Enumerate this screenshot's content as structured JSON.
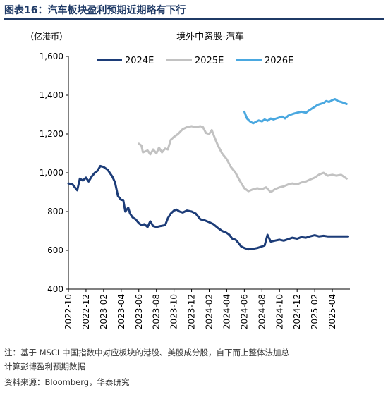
{
  "figure": {
    "label": "图表16：",
    "title": "汽车板块盈利预期近期略有下行",
    "note_line1": "注：基于 MSCI 中国指数中对应板块的港股、美股成分股，自下而上整体法加总",
    "note_line2": "计算彭博盈利预期数据",
    "source": "资料来源：Bloomberg，华泰研究"
  },
  "chart_data": {
    "type": "line",
    "title": "境外中资股-汽车",
    "ylabel": "（亿港币）",
    "ylim": [
      400,
      1600
    ],
    "yticks": [
      400,
      600,
      800,
      1000,
      1200,
      1400,
      1600
    ],
    "xlim": [
      "2022-10",
      "2025-06"
    ],
    "xticks": [
      "2022-10",
      "2022-12",
      "2023-02",
      "2023-04",
      "2023-06",
      "2023-08",
      "2023-10",
      "2023-12",
      "2024-02",
      "2024-04",
      "2024-06",
      "2024-08",
      "2024-10",
      "2024-12",
      "2025-02",
      "2025-04"
    ],
    "grid": false,
    "legend_position": "top",
    "series": [
      {
        "name": "2024E",
        "color": "#1c3c78",
        "points": [
          [
            "2022-10",
            945
          ],
          [
            "2022-10-15",
            940
          ],
          [
            "2022-11",
            910
          ],
          [
            "2022-11-10",
            970
          ],
          [
            "2022-11-20",
            960
          ],
          [
            "2022-12",
            975
          ],
          [
            "2022-12-10",
            955
          ],
          [
            "2022-12-20",
            980
          ],
          [
            "2023-01",
            1000
          ],
          [
            "2023-01-10",
            1010
          ],
          [
            "2023-01-20",
            1035
          ],
          [
            "2023-02",
            1030
          ],
          [
            "2023-02-15",
            1015
          ],
          [
            "2023-03",
            980
          ],
          [
            "2023-03-10",
            950
          ],
          [
            "2023-03-20",
            880
          ],
          [
            "2023-04",
            860
          ],
          [
            "2023-04-08",
            860
          ],
          [
            "2023-04-15",
            800
          ],
          [
            "2023-04-25",
            820
          ],
          [
            "2023-05",
            790
          ],
          [
            "2023-05-10",
            770
          ],
          [
            "2023-05-20",
            760
          ],
          [
            "2023-06",
            740
          ],
          [
            "2023-06-10",
            730
          ],
          [
            "2023-06-20",
            735
          ],
          [
            "2023-07",
            720
          ],
          [
            "2023-07-10",
            750
          ],
          [
            "2023-07-20",
            725
          ],
          [
            "2023-08",
            720
          ],
          [
            "2023-08-15",
            725
          ],
          [
            "2023-09",
            730
          ],
          [
            "2023-09-10",
            765
          ],
          [
            "2023-09-20",
            790
          ],
          [
            "2023-10",
            805
          ],
          [
            "2023-10-10",
            810
          ],
          [
            "2023-10-20",
            800
          ],
          [
            "2023-11",
            795
          ],
          [
            "2023-11-15",
            805
          ],
          [
            "2023-12",
            800
          ],
          [
            "2023-12-15",
            790
          ],
          [
            "2024-01",
            760
          ],
          [
            "2024-01-15",
            755
          ],
          [
            "2024-02",
            745
          ],
          [
            "2024-02-15",
            735
          ],
          [
            "2024-03",
            715
          ],
          [
            "2024-03-15",
            700
          ],
          [
            "2024-04",
            690
          ],
          [
            "2024-04-10",
            680
          ],
          [
            "2024-04-20",
            660
          ],
          [
            "2024-05",
            655
          ],
          [
            "2024-05-10",
            640
          ],
          [
            "2024-05-20",
            620
          ],
          [
            "2024-06",
            612
          ],
          [
            "2024-06-15",
            605
          ],
          [
            "2024-07",
            608
          ],
          [
            "2024-07-15",
            612
          ],
          [
            "2024-08",
            620
          ],
          [
            "2024-08-10",
            625
          ],
          [
            "2024-08-20",
            680
          ],
          [
            "2024-09",
            645
          ],
          [
            "2024-09-15",
            650
          ],
          [
            "2024-10",
            655
          ],
          [
            "2024-10-15",
            650
          ],
          [
            "2024-11",
            658
          ],
          [
            "2024-11-15",
            665
          ],
          [
            "2024-12",
            660
          ],
          [
            "2024-12-15",
            668
          ],
          [
            "2025-01",
            665
          ],
          [
            "2025-01-15",
            672
          ],
          [
            "2025-02",
            678
          ],
          [
            "2025-02-15",
            672
          ],
          [
            "2025-03",
            675
          ],
          [
            "2025-03-15",
            672
          ],
          [
            "2025-04",
            672
          ],
          [
            "2025-05",
            672
          ],
          [
            "2025-05-25",
            672
          ]
        ]
      },
      {
        "name": "2025E",
        "color": "#c2c2c2",
        "points": [
          [
            "2023-06",
            1150
          ],
          [
            "2023-06-10",
            1140
          ],
          [
            "2023-06-15",
            1105
          ],
          [
            "2023-07",
            1115
          ],
          [
            "2023-07-10",
            1095
          ],
          [
            "2023-07-20",
            1120
          ],
          [
            "2023-08",
            1100
          ],
          [
            "2023-08-10",
            1130
          ],
          [
            "2023-08-20",
            1105
          ],
          [
            "2023-09",
            1125
          ],
          [
            "2023-09-10",
            1120
          ],
          [
            "2023-09-20",
            1170
          ],
          [
            "2023-10",
            1185
          ],
          [
            "2023-10-15",
            1200
          ],
          [
            "2023-11",
            1225
          ],
          [
            "2023-11-15",
            1235
          ],
          [
            "2023-12",
            1240
          ],
          [
            "2023-12-15",
            1235
          ],
          [
            "2024-01",
            1240
          ],
          [
            "2024-01-10",
            1235
          ],
          [
            "2024-01-20",
            1205
          ],
          [
            "2024-02",
            1200
          ],
          [
            "2024-02-10",
            1220
          ],
          [
            "2024-02-20",
            1180
          ],
          [
            "2024-03",
            1140
          ],
          [
            "2024-03-15",
            1100
          ],
          [
            "2024-04",
            1070
          ],
          [
            "2024-04-15",
            1030
          ],
          [
            "2024-05",
            1000
          ],
          [
            "2024-05-15",
            960
          ],
          [
            "2024-06",
            920
          ],
          [
            "2024-06-15",
            905
          ],
          [
            "2024-07",
            915
          ],
          [
            "2024-07-15",
            920
          ],
          [
            "2024-08",
            915
          ],
          [
            "2024-08-15",
            925
          ],
          [
            "2024-09",
            900
          ],
          [
            "2024-09-15",
            915
          ],
          [
            "2024-10",
            925
          ],
          [
            "2024-10-15",
            930
          ],
          [
            "2024-11",
            940
          ],
          [
            "2024-11-15",
            945
          ],
          [
            "2024-12",
            940
          ],
          [
            "2024-12-15",
            950
          ],
          [
            "2025-01",
            955
          ],
          [
            "2025-01-15",
            965
          ],
          [
            "2025-02",
            975
          ],
          [
            "2025-02-15",
            990
          ],
          [
            "2025-03",
            1000
          ],
          [
            "2025-03-15",
            985
          ],
          [
            "2025-04",
            990
          ],
          [
            "2025-04-15",
            985
          ],
          [
            "2025-05",
            990
          ],
          [
            "2025-05-20",
            970
          ]
        ]
      },
      {
        "name": "2026E",
        "color": "#4aa8e0",
        "points": [
          [
            "2024-06",
            1315
          ],
          [
            "2024-06-10",
            1280
          ],
          [
            "2024-06-20",
            1265
          ],
          [
            "2024-07",
            1255
          ],
          [
            "2024-07-10",
            1262
          ],
          [
            "2024-07-20",
            1270
          ],
          [
            "2024-08",
            1265
          ],
          [
            "2024-08-10",
            1275
          ],
          [
            "2024-08-20",
            1268
          ],
          [
            "2024-09",
            1280
          ],
          [
            "2024-09-10",
            1275
          ],
          [
            "2024-09-20",
            1280
          ],
          [
            "2024-10",
            1285
          ],
          [
            "2024-10-10",
            1290
          ],
          [
            "2024-10-20",
            1280
          ],
          [
            "2024-11",
            1295
          ],
          [
            "2024-11-10",
            1300
          ],
          [
            "2024-11-20",
            1305
          ],
          [
            "2024-12",
            1310
          ],
          [
            "2024-12-15",
            1315
          ],
          [
            "2025-01",
            1310
          ],
          [
            "2025-01-10",
            1320
          ],
          [
            "2025-01-20",
            1330
          ],
          [
            "2025-02",
            1340
          ],
          [
            "2025-02-10",
            1350
          ],
          [
            "2025-02-20",
            1355
          ],
          [
            "2025-03",
            1360
          ],
          [
            "2025-03-10",
            1370
          ],
          [
            "2025-03-20",
            1365
          ],
          [
            "2025-04",
            1375
          ],
          [
            "2025-04-10",
            1380
          ],
          [
            "2025-04-20",
            1370
          ],
          [
            "2025-05",
            1365
          ],
          [
            "2025-05-20",
            1355
          ]
        ]
      }
    ]
  }
}
